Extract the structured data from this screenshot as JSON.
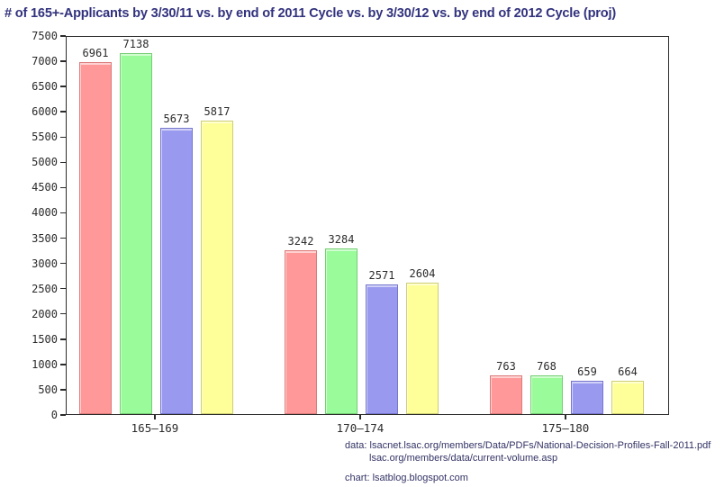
{
  "title": "# of 165+-Applicants by 3/30/11 vs. by end of 2011 Cycle vs. by 3/30/12 vs. by end of 2012 Cycle (proj)",
  "footer": {
    "data_line1": "data: lsacnet.lsac.org/members/Data/PDFs/National-Decision-Profiles-Fall-2011.pdf",
    "data_line2": "lsac.org/members/data/current-volume.asp",
    "chart_line": "chart: lsatblog.blogspot.com"
  },
  "colors": {
    "title_text": "#32327E",
    "footer_text": "#333366",
    "axis": "#2b2b2b",
    "series_fill": [
      "#FF9999",
      "#99FB99",
      "#9999F0",
      "#FFFF99"
    ],
    "series_border": [
      "#DC7A7A",
      "#74CE74",
      "#7676CE",
      "#CECE74"
    ]
  },
  "chart_data": {
    "type": "bar",
    "title": "# of 165+-Applicants by 3/30/11 vs. by end of 2011 Cycle vs. by 3/30/12 vs. by end of 2012 Cycle (proj)",
    "categories": [
      "165–169",
      "170–174",
      "175–180"
    ],
    "series": [
      {
        "name": "by 3/30/11",
        "values": [
          6961,
          3242,
          763
        ]
      },
      {
        "name": "by end of 2011 Cycle",
        "values": [
          7138,
          3284,
          768
        ]
      },
      {
        "name": "by 3/30/12",
        "values": [
          5673,
          2571,
          659
        ]
      },
      {
        "name": "by end of 2012 Cycle (proj)",
        "values": [
          5817,
          2604,
          664
        ]
      }
    ],
    "xlabel": "",
    "ylabel": "",
    "ylim": [
      0,
      7500
    ],
    "yticks": [
      0,
      500,
      1000,
      1500,
      2000,
      2500,
      3000,
      3500,
      4000,
      4500,
      5000,
      5500,
      6000,
      6500,
      7000,
      7500
    ],
    "grid": false,
    "legend_position": "none",
    "bar_value_labels": true
  }
}
